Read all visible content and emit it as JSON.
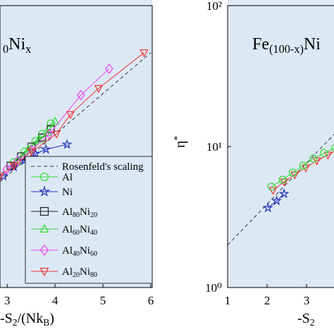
{
  "chart_data": [
    {
      "type": "scatter-line",
      "log_y": true,
      "background": "#dde8f5",
      "title": [
        [
          "0",
          "sub"
        ],
        [
          "Ni",
          ""
        ],
        [
          "x",
          "sub"
        ]
      ],
      "xlabel": [
        [
          "-S",
          ""
        ],
        [
          "2",
          "sub"
        ],
        [
          "/(Nk",
          ""
        ],
        [
          "B",
          "sub"
        ],
        [
          ")",
          ""
        ]
      ],
      "xlim": [
        2.85,
        6.03
      ],
      "xticks": [
        3,
        4,
        5,
        6
      ],
      "ylim": [
        1,
        100
      ],
      "series": [
        {
          "name": "Rosenfeld's scaling",
          "color": "#333333",
          "style": "dashed",
          "marker": "none",
          "x": [
            2.85,
            6.0
          ],
          "values": [
            5.62,
            46.4
          ]
        },
        {
          "name": "Al",
          "color": "#33dd33",
          "marker": "circle",
          "x": [
            3.14,
            3.36,
            3.59,
            3.73,
            3.91
          ],
          "values": [
            7.76,
            9.21,
            10.96,
            12.3,
            14.6
          ]
        },
        {
          "name": "Ni",
          "color": "#2233bb",
          "marker": "star",
          "x": [
            2.92,
            3.14,
            3.36,
            3.59,
            3.81,
            4.25
          ],
          "values": [
            6.17,
            7.16,
            7.94,
            8.91,
            9.55,
            10.35
          ]
        },
        {
          "name": "Al80Ni20",
          "color": "#222222",
          "marker": "square",
          "x": [
            3.07,
            3.29,
            3.51,
            3.73,
            3.91
          ],
          "values": [
            7.31,
            8.51,
            10.0,
            11.6,
            13.3
          ]
        },
        {
          "name": "Al60Ni40",
          "color": "#33dd33",
          "marker": "triangle",
          "x": [
            3.22,
            3.44,
            3.66,
            3.85,
            4.0
          ],
          "values": [
            7.94,
            9.55,
            11.2,
            12.6,
            15.1
          ]
        },
        {
          "name": "Al40Ni60",
          "color": "#ee44ee",
          "marker": "diamond",
          "x": [
            2.99,
            3.22,
            3.51,
            3.88,
            4.54,
            5.13
          ],
          "values": [
            6.92,
            7.94,
            9.44,
            12.3,
            23.2,
            35.7
          ]
        },
        {
          "name": "Al20Ni80",
          "color": "#ee3333",
          "marker": "triangle-down",
          "x": [
            2.85,
            3.14,
            3.51,
            4.03,
            4.32,
            4.91,
            5.86
          ],
          "values": [
            6.17,
            7.31,
            9.2,
            12.3,
            16.9,
            25.9,
            46.4
          ]
        }
      ]
    },
    {
      "type": "scatter-line",
      "log_y": true,
      "background": "#dde8f5",
      "title": [
        [
          "Fe",
          ""
        ],
        [
          "(100-x)",
          "sub"
        ],
        [
          "Ni",
          ""
        ]
      ],
      "xlabel": [
        [
          "-S",
          ""
        ],
        [
          "2",
          "sub"
        ]
      ],
      "ylabel": [
        [
          "η",
          ""
        ],
        [
          "*",
          "sup"
        ]
      ],
      "xlim": [
        1,
        3.8
      ],
      "xticks": [
        1,
        2,
        3
      ],
      "ylim": [
        1,
        100
      ],
      "yticks": [
        {
          "value": 1,
          "label": "10⁰"
        },
        {
          "value": 10,
          "label": "10¹"
        },
        {
          "value": 100,
          "label": "10²"
        }
      ],
      "series": [
        {
          "color": "#333333",
          "style": "dashed",
          "marker": "none",
          "x": [
            1,
            3.8
          ],
          "values": [
            2.0,
            13.1
          ]
        },
        {
          "color": "#2233bb",
          "marker": "star",
          "x": [
            2.02,
            2.24,
            2.43
          ],
          "values": [
            3.67,
            4.12,
            4.62
          ]
        },
        {
          "color": "#ee3333",
          "marker": "triangle-down",
          "x": [
            2.15,
            2.43,
            2.7,
            2.98,
            3.26,
            3.54,
            3.8
          ],
          "values": [
            4.9,
            5.62,
            6.31,
            7.08,
            7.94,
            8.71,
            9.55
          ]
        },
        {
          "color": "#33dd33",
          "marker": "circle",
          "x": [
            2.11,
            2.39,
            2.65,
            2.91,
            3.17,
            3.44,
            3.72
          ],
          "values": [
            5.19,
            5.82,
            6.53,
            7.33,
            8.22,
            9.0,
            9.77
          ]
        }
      ]
    }
  ]
}
